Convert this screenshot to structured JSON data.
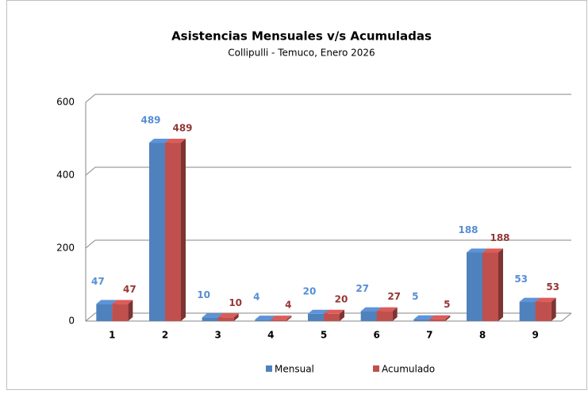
{
  "chart_data": {
    "type": "bar3d",
    "title": "Asistencias Mensuales v/s Acumuladas",
    "subtitle": "Collipulli - Temuco,  Enero 2026",
    "categories": [
      "1",
      "2",
      "3",
      "4",
      "5",
      "6",
      "7",
      "8",
      "9"
    ],
    "series": [
      {
        "name": "Mensual",
        "color": "#4f81bd",
        "values": [
          47,
          489,
          10,
          4,
          20,
          27,
          5,
          188,
          53
        ]
      },
      {
        "name": "Acumulado",
        "color": "#c0504d",
        "values": [
          47,
          489,
          10,
          4,
          20,
          27,
          5,
          188,
          53
        ]
      }
    ],
    "ylim": [
      0,
      600
    ],
    "yticks": [
      0,
      200,
      400,
      600
    ],
    "grid": true,
    "legend": "bottom"
  }
}
